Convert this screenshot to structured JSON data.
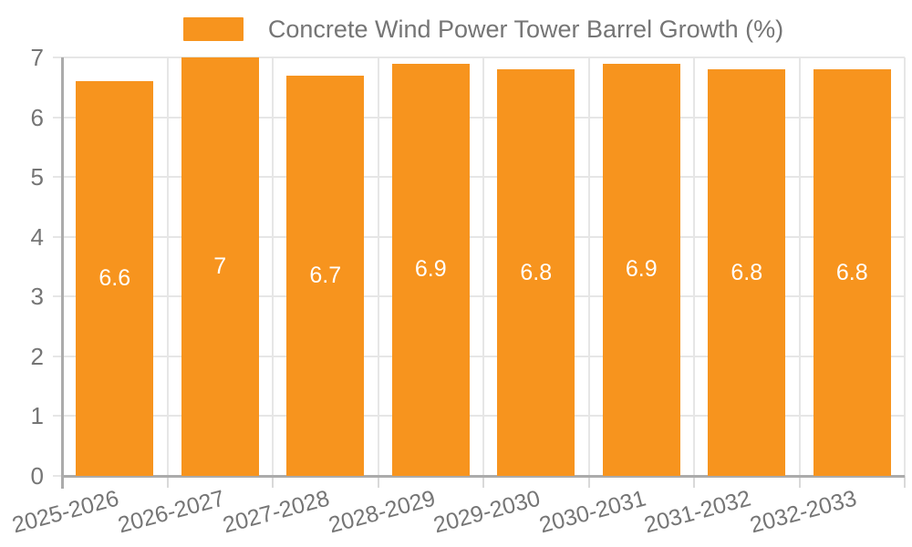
{
  "colors": {
    "bar": "#f7941e",
    "axis_text": "#757575",
    "bar_label_text": "#ffffff",
    "grid_line": "#e6e6e6",
    "axis_line": "#ababab",
    "tick_line": "#d9d9d9",
    "background": "#ffffff"
  },
  "legend": {
    "items": [
      {
        "label": "Concrete Wind Power Tower Barrel Growth (%)",
        "color": "#f7941e"
      }
    ],
    "position": "top-center"
  },
  "chart_data": {
    "type": "bar",
    "title": "",
    "series_name": "Concrete Wind Power Tower Barrel Growth (%)",
    "categories": [
      "2025-2026",
      "2026-2027",
      "2027-2028",
      "2028-2029",
      "2029-2030",
      "2030-2031",
      "2031-2032",
      "2032-2033"
    ],
    "values": [
      6.6,
      7,
      6.7,
      6.9,
      6.8,
      6.9,
      6.8,
      6.8
    ],
    "bar_value_labels": [
      "6.6",
      "7",
      "6.7",
      "6.9",
      "6.8",
      "6.9",
      "6.8",
      "6.8"
    ],
    "xlabel": "",
    "ylabel": "",
    "ylim": [
      0,
      7
    ],
    "yticks": [
      0,
      1,
      2,
      3,
      4,
      5,
      6,
      7
    ],
    "grid": true,
    "legend_position": "top",
    "x_label_rotation_deg": -15,
    "bar_labels_position": "inside-center"
  }
}
